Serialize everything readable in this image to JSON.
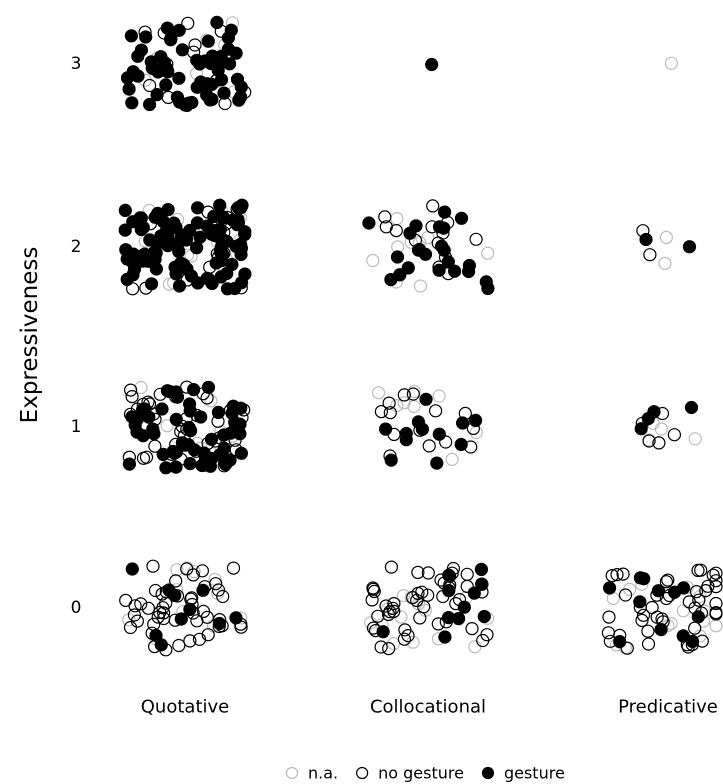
{
  "chart_data": {
    "type": "scatter",
    "title": "",
    "ylabel": "Expressiveness",
    "xlabel": "",
    "categories": [
      "Quotative",
      "Collocational",
      "Predicative"
    ],
    "y_ticks": [
      "0",
      "1",
      "2",
      "3"
    ],
    "jitter": true,
    "legend_placement": "bottom",
    "legend": [
      {
        "key": "na",
        "label": "n.a.",
        "color": "#bbbbbb",
        "filled": false
      },
      {
        "key": "no",
        "label": "no gesture",
        "color": "#000000",
        "filled": false
      },
      {
        "key": "ge",
        "label": "gesture",
        "color": "#000000",
        "filled": true
      }
    ],
    "counts": [
      {
        "category": "Quotative",
        "level": 3,
        "na": 8,
        "no": 12,
        "ge": 60
      },
      {
        "category": "Quotative",
        "level": 2,
        "na": 15,
        "no": 22,
        "ge": 100
      },
      {
        "category": "Quotative",
        "level": 1,
        "na": 12,
        "no": 40,
        "ge": 55
      },
      {
        "category": "Quotative",
        "level": 0,
        "na": 12,
        "no": 48,
        "ge": 10
      },
      {
        "category": "Collocational",
        "level": 3,
        "na": 0,
        "no": 0,
        "ge": 1
      },
      {
        "category": "Collocational",
        "level": 2,
        "na": 10,
        "no": 14,
        "ge": 22
      },
      {
        "category": "Collocational",
        "level": 1,
        "na": 8,
        "no": 14,
        "ge": 12
      },
      {
        "category": "Collocational",
        "level": 0,
        "na": 14,
        "no": 46,
        "ge": 12
      },
      {
        "category": "Predicative",
        "level": 3,
        "na": 1,
        "no": 0,
        "ge": 0
      },
      {
        "category": "Predicative",
        "level": 2,
        "na": 2,
        "no": 2,
        "ge": 2
      },
      {
        "category": "Predicative",
        "level": 1,
        "na": 4,
        "no": 5,
        "ge": 4
      },
      {
        "category": "Predicative",
        "level": 0,
        "na": 14,
        "no": 44,
        "ge": 12
      }
    ]
  }
}
